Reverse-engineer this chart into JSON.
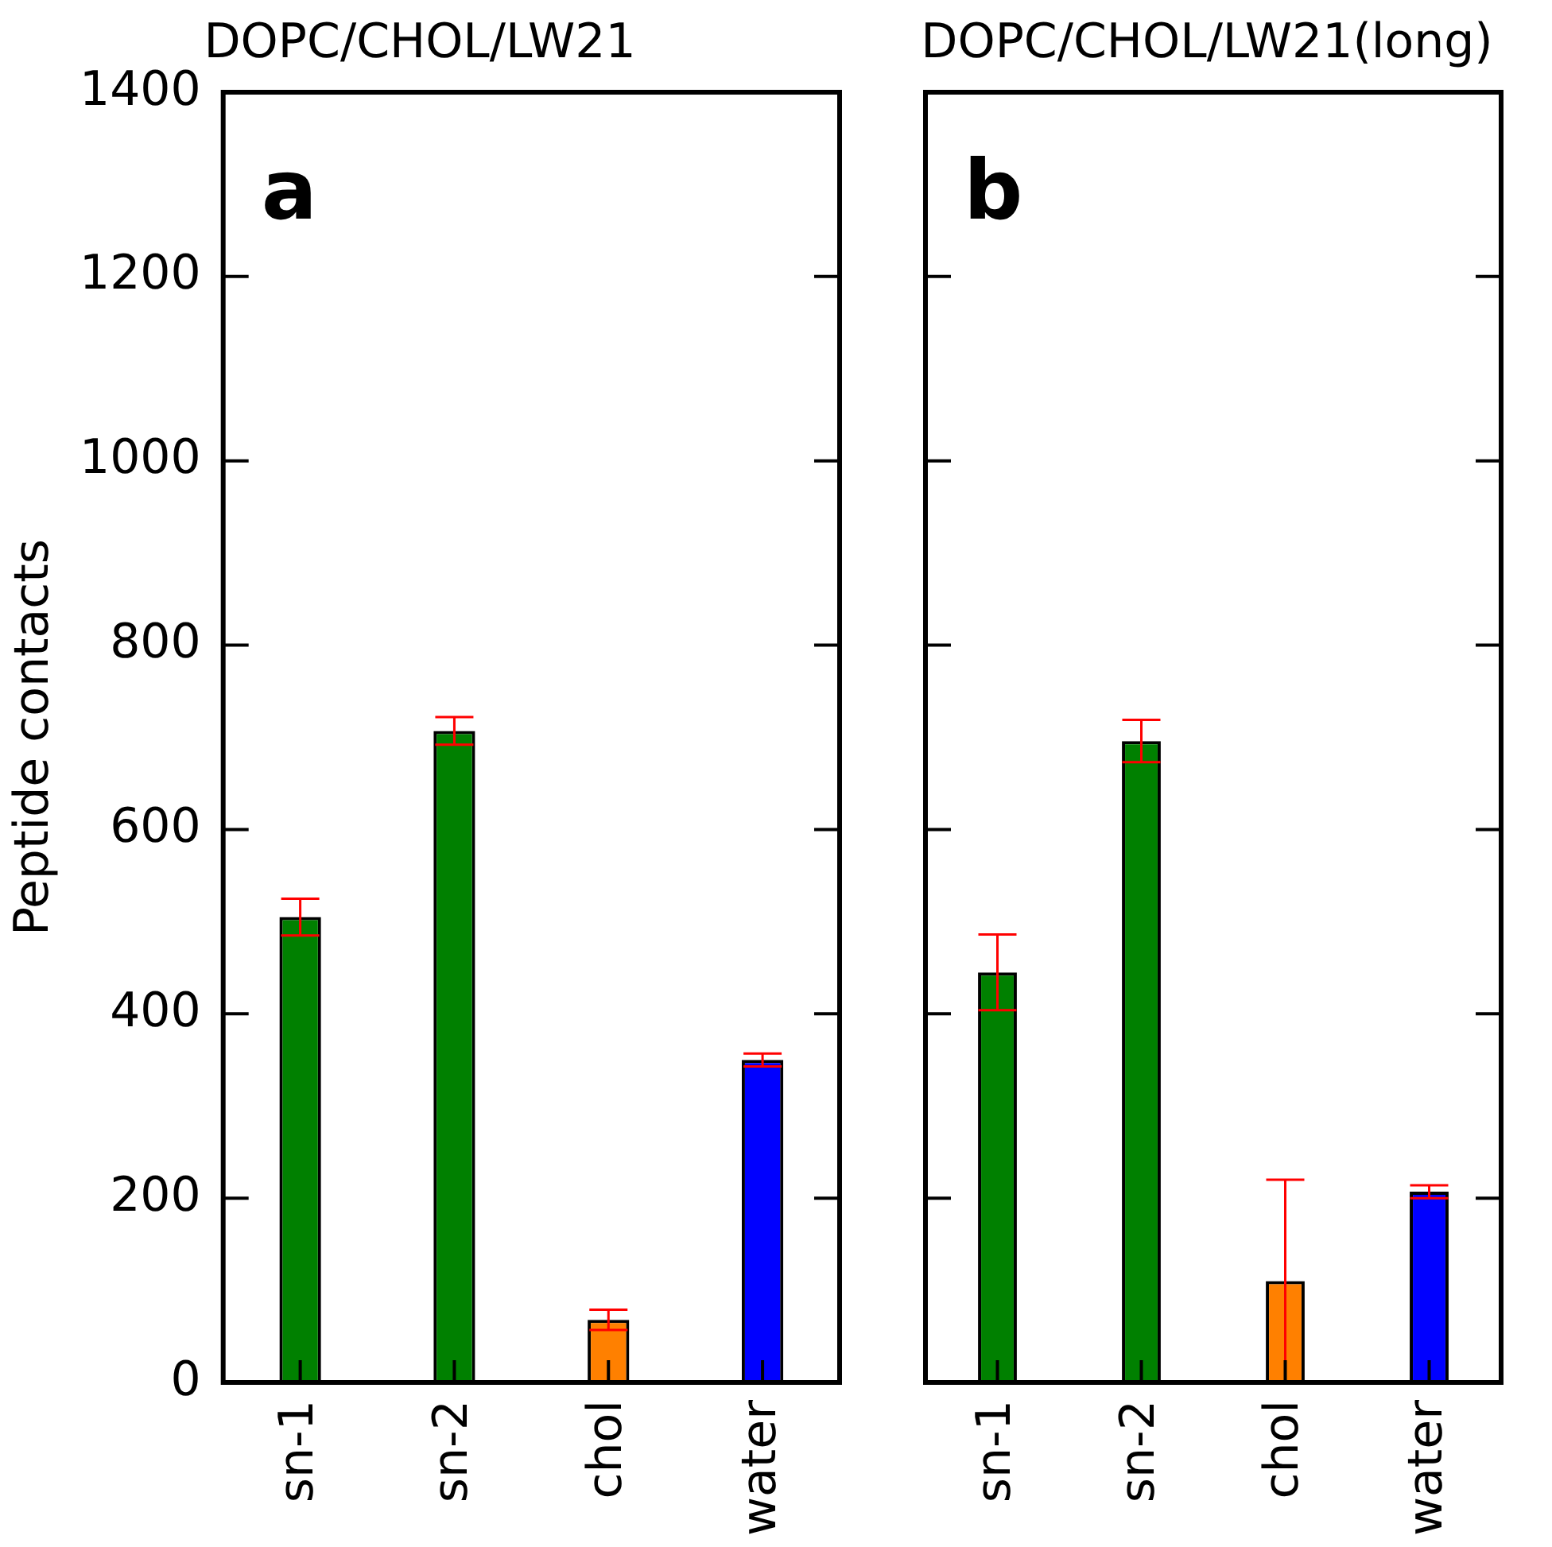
{
  "chart_data": [
    {
      "type": "bar",
      "title": "DOPC/CHOL/LW21",
      "ylabel": "Peptide contacts",
      "categories": [
        "sn-1",
        "sn-2",
        "chol",
        "water"
      ],
      "values": [
        505,
        707,
        68,
        350
      ],
      "errors": [
        20,
        15,
        11,
        7
      ],
      "colors": [
        "#008000",
        "#008000",
        "#ff8000",
        "#0000ff"
      ],
      "ylim": [
        0,
        1400
      ],
      "yticks": [
        0,
        200,
        400,
        600,
        800,
        1000,
        1200,
        1400
      ],
      "annotations": [
        "a"
      ]
    },
    {
      "type": "bar",
      "title": "DOPC/CHOL/LW21(long)",
      "categories": [
        "sn-1",
        "sn-2",
        "chol",
        "water"
      ],
      "values": [
        445,
        696,
        110,
        207
      ],
      "errors": [
        41,
        23,
        110,
        7
      ],
      "colors": [
        "#008000",
        "#008000",
        "#ff8000",
        "#0000ff"
      ],
      "ylim": [
        0,
        1400
      ],
      "yticks": [
        0,
        200,
        400,
        600,
        800,
        1000,
        1200,
        1400
      ],
      "tick_labels": "x",
      "annotations": [
        "b"
      ]
    }
  ]
}
